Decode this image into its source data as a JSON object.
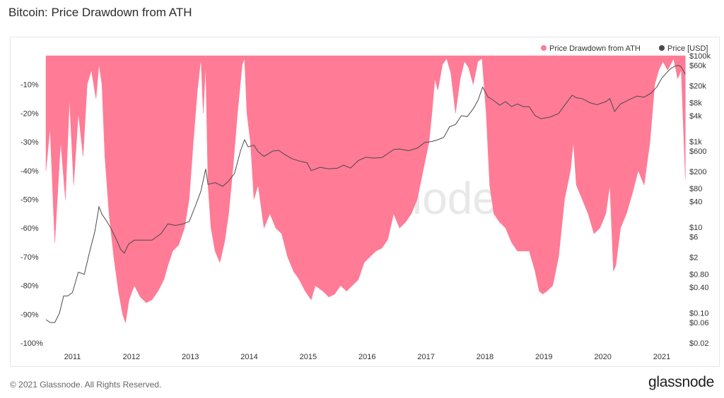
{
  "header": {
    "title": "Bitcoin: Price Drawdown from ATH"
  },
  "footer": {
    "copyright": "© 2021 Glassnode. All Rights Reserved.",
    "brand": "glassnode"
  },
  "watermark": "glassnode",
  "colors": {
    "drawdown": "#ff7b96",
    "price": "#4a4a4a"
  },
  "chart_data": {
    "type": "area",
    "title": "Bitcoin: Price Drawdown from ATH",
    "legend": {
      "position": "top-right",
      "entries": [
        "Price Drawdown from ATH",
        "Price [USD]"
      ]
    },
    "x_ticks": [
      "2011",
      "2012",
      "2013",
      "2014",
      "2015",
      "2016",
      "2017",
      "2018",
      "2019",
      "2020",
      "2021"
    ],
    "y_left": {
      "label": "",
      "ticks": [
        "-10%",
        "-20%",
        "-30%",
        "-40%",
        "-50%",
        "-60%",
        "-70%",
        "-80%",
        "-90%",
        "-100%"
      ],
      "range": [
        -100,
        0
      ]
    },
    "y_right": {
      "label": "",
      "scale": "log",
      "ticks": [
        "$100k",
        "$60k",
        "$20k",
        "$8k",
        "$4k",
        "$1k",
        "$600",
        "$200",
        "$80",
        "$40",
        "$10",
        "$6",
        "$2",
        "$0.80",
        "$0.40",
        "$0.10",
        "$0.06",
        "$0.02"
      ],
      "range": [
        0.02,
        100000
      ]
    },
    "grid": false,
    "series": [
      {
        "name": "Price Drawdown from ATH",
        "unit": "%",
        "points": [
          [
            2010.55,
            -40
          ],
          [
            2010.62,
            -25
          ],
          [
            2010.7,
            -65
          ],
          [
            2010.8,
            -30
          ],
          [
            2010.88,
            -50
          ],
          [
            2010.95,
            -15
          ],
          [
            2011.02,
            -45
          ],
          [
            2011.1,
            -20
          ],
          [
            2011.18,
            -35
          ],
          [
            2011.25,
            -10
          ],
          [
            2011.32,
            -5
          ],
          [
            2011.4,
            -15
          ],
          [
            2011.45,
            -3
          ],
          [
            2011.5,
            -10
          ],
          [
            2011.55,
            -35
          ],
          [
            2011.62,
            -55
          ],
          [
            2011.7,
            -70
          ],
          [
            2011.78,
            -82
          ],
          [
            2011.85,
            -90
          ],
          [
            2011.9,
            -93
          ],
          [
            2011.96,
            -85
          ],
          [
            2012.05,
            -80
          ],
          [
            2012.15,
            -84
          ],
          [
            2012.25,
            -86
          ],
          [
            2012.35,
            -85
          ],
          [
            2012.45,
            -82
          ],
          [
            2012.55,
            -78
          ],
          [
            2012.62,
            -73
          ],
          [
            2012.7,
            -68
          ],
          [
            2012.8,
            -66
          ],
          [
            2012.9,
            -60
          ],
          [
            2012.98,
            -50
          ],
          [
            2013.05,
            -30
          ],
          [
            2013.12,
            -12
          ],
          [
            2013.18,
            -1
          ],
          [
            2013.22,
            -20
          ],
          [
            2013.26,
            -3
          ],
          [
            2013.3,
            -45
          ],
          [
            2013.35,
            -60
          ],
          [
            2013.42,
            -68
          ],
          [
            2013.5,
            -72
          ],
          [
            2013.58,
            -65
          ],
          [
            2013.65,
            -55
          ],
          [
            2013.72,
            -40
          ],
          [
            2013.8,
            -20
          ],
          [
            2013.88,
            -3
          ],
          [
            2013.92,
            -1
          ],
          [
            2013.96,
            -20
          ],
          [
            2014.02,
            -30
          ],
          [
            2014.08,
            -50
          ],
          [
            2014.15,
            -45
          ],
          [
            2014.25,
            -60
          ],
          [
            2014.35,
            -55
          ],
          [
            2014.45,
            -60
          ],
          [
            2014.55,
            -62
          ],
          [
            2014.65,
            -70
          ],
          [
            2014.75,
            -75
          ],
          [
            2014.85,
            -78
          ],
          [
            2014.95,
            -82
          ],
          [
            2015.05,
            -85
          ],
          [
            2015.12,
            -80
          ],
          [
            2015.25,
            -82
          ],
          [
            2015.35,
            -84
          ],
          [
            2015.45,
            -83
          ],
          [
            2015.55,
            -80
          ],
          [
            2015.65,
            -82
          ],
          [
            2015.75,
            -80
          ],
          [
            2015.85,
            -78
          ],
          [
            2015.95,
            -72
          ],
          [
            2016.05,
            -70
          ],
          [
            2016.15,
            -68
          ],
          [
            2016.25,
            -67
          ],
          [
            2016.35,
            -64
          ],
          [
            2016.45,
            -55
          ],
          [
            2016.55,
            -60
          ],
          [
            2016.65,
            -58
          ],
          [
            2016.75,
            -55
          ],
          [
            2016.85,
            -50
          ],
          [
            2016.95,
            -40
          ],
          [
            2017.05,
            -30
          ],
          [
            2017.1,
            -20
          ],
          [
            2017.15,
            -8
          ],
          [
            2017.2,
            -12
          ],
          [
            2017.28,
            -3
          ],
          [
            2017.35,
            -1
          ],
          [
            2017.42,
            -6
          ],
          [
            2017.5,
            -20
          ],
          [
            2017.58,
            -8
          ],
          [
            2017.65,
            -2
          ],
          [
            2017.72,
            -4
          ],
          [
            2017.8,
            -10
          ],
          [
            2017.88,
            -2
          ],
          [
            2017.95,
            -1
          ],
          [
            2018.02,
            -20
          ],
          [
            2018.08,
            -45
          ],
          [
            2018.15,
            -55
          ],
          [
            2018.25,
            -58
          ],
          [
            2018.35,
            -60
          ],
          [
            2018.45,
            -65
          ],
          [
            2018.55,
            -68
          ],
          [
            2018.65,
            -68
          ],
          [
            2018.75,
            -68
          ],
          [
            2018.85,
            -75
          ],
          [
            2018.92,
            -82
          ],
          [
            2018.98,
            -83
          ],
          [
            2019.05,
            -82
          ],
          [
            2019.15,
            -80
          ],
          [
            2019.25,
            -70
          ],
          [
            2019.35,
            -50
          ],
          [
            2019.45,
            -40
          ],
          [
            2019.5,
            -30
          ],
          [
            2019.55,
            -45
          ],
          [
            2019.65,
            -50
          ],
          [
            2019.75,
            -55
          ],
          [
            2019.85,
            -62
          ],
          [
            2019.95,
            -60
          ],
          [
            2020.05,
            -55
          ],
          [
            2020.12,
            -45
          ],
          [
            2020.18,
            -75
          ],
          [
            2020.22,
            -73
          ],
          [
            2020.3,
            -60
          ],
          [
            2020.4,
            -55
          ],
          [
            2020.5,
            -48
          ],
          [
            2020.6,
            -40
          ],
          [
            2020.7,
            -45
          ],
          [
            2020.8,
            -30
          ],
          [
            2020.88,
            -10
          ],
          [
            2020.95,
            -5
          ],
          [
            2021.02,
            -2
          ],
          [
            2021.1,
            -5
          ],
          [
            2021.15,
            -3
          ],
          [
            2021.2,
            -1
          ],
          [
            2021.27,
            -8
          ],
          [
            2021.33,
            -5
          ],
          [
            2021.4,
            -43
          ]
        ]
      },
      {
        "name": "Price [USD]",
        "unit": "USD",
        "points": [
          [
            2010.55,
            0.07
          ],
          [
            2010.62,
            0.06
          ],
          [
            2010.7,
            0.06
          ],
          [
            2010.78,
            0.1
          ],
          [
            2010.85,
            0.25
          ],
          [
            2010.92,
            0.25
          ],
          [
            2011.0,
            0.3
          ],
          [
            2011.1,
            0.9
          ],
          [
            2011.2,
            0.8
          ],
          [
            2011.3,
            3
          ],
          [
            2011.38,
            8
          ],
          [
            2011.45,
            30
          ],
          [
            2011.5,
            20
          ],
          [
            2011.58,
            14
          ],
          [
            2011.66,
            9
          ],
          [
            2011.75,
            5
          ],
          [
            2011.82,
            3
          ],
          [
            2011.88,
            2.5
          ],
          [
            2011.95,
            4
          ],
          [
            2012.05,
            5
          ],
          [
            2012.2,
            5
          ],
          [
            2012.35,
            5
          ],
          [
            2012.5,
            7
          ],
          [
            2012.62,
            12
          ],
          [
            2012.75,
            11
          ],
          [
            2012.88,
            12
          ],
          [
            2012.98,
            13.5
          ],
          [
            2013.08,
            30
          ],
          [
            2013.18,
            70
          ],
          [
            2013.26,
            230
          ],
          [
            2013.3,
            100
          ],
          [
            2013.42,
            110
          ],
          [
            2013.55,
            90
          ],
          [
            2013.65,
            120
          ],
          [
            2013.75,
            180
          ],
          [
            2013.85,
            600
          ],
          [
            2013.92,
            1100
          ],
          [
            2013.98,
            750
          ],
          [
            2014.08,
            820
          ],
          [
            2014.15,
            580
          ],
          [
            2014.25,
            450
          ],
          [
            2014.4,
            600
          ],
          [
            2014.5,
            620
          ],
          [
            2014.6,
            500
          ],
          [
            2014.72,
            400
          ],
          [
            2014.85,
            350
          ],
          [
            2014.98,
            320
          ],
          [
            2015.05,
            210
          ],
          [
            2015.2,
            250
          ],
          [
            2015.35,
            230
          ],
          [
            2015.5,
            240
          ],
          [
            2015.6,
            280
          ],
          [
            2015.72,
            240
          ],
          [
            2015.85,
            360
          ],
          [
            2015.98,
            430
          ],
          [
            2016.1,
            410
          ],
          [
            2016.25,
            420
          ],
          [
            2016.45,
            650
          ],
          [
            2016.55,
            670
          ],
          [
            2016.7,
            610
          ],
          [
            2016.85,
            700
          ],
          [
            2016.98,
            950
          ],
          [
            2017.1,
            1000
          ],
          [
            2017.2,
            1100
          ],
          [
            2017.3,
            1250
          ],
          [
            2017.4,
            2200
          ],
          [
            2017.5,
            2500
          ],
          [
            2017.6,
            4000
          ],
          [
            2017.7,
            3800
          ],
          [
            2017.8,
            5800
          ],
          [
            2017.88,
            9000
          ],
          [
            2017.96,
            18500
          ],
          [
            2018.05,
            11000
          ],
          [
            2018.15,
            9000
          ],
          [
            2018.25,
            7000
          ],
          [
            2018.35,
            8500
          ],
          [
            2018.45,
            6500
          ],
          [
            2018.55,
            7500
          ],
          [
            2018.65,
            6500
          ],
          [
            2018.75,
            6500
          ],
          [
            2018.85,
            4000
          ],
          [
            2018.95,
            3400
          ],
          [
            2019.1,
            3700
          ],
          [
            2019.25,
            4500
          ],
          [
            2019.35,
            7000
          ],
          [
            2019.48,
            12000
          ],
          [
            2019.55,
            10500
          ],
          [
            2019.65,
            10000
          ],
          [
            2019.78,
            8000
          ],
          [
            2019.9,
            7200
          ],
          [
            2020.05,
            8500
          ],
          [
            2020.12,
            10000
          ],
          [
            2020.2,
            5000
          ],
          [
            2020.3,
            7500
          ],
          [
            2020.45,
            9500
          ],
          [
            2020.58,
            11500
          ],
          [
            2020.7,
            10800
          ],
          [
            2020.82,
            13500
          ],
          [
            2020.92,
            19000
          ],
          [
            2021.0,
            30000
          ],
          [
            2021.08,
            40000
          ],
          [
            2021.15,
            50000
          ],
          [
            2021.22,
            57000
          ],
          [
            2021.28,
            60000
          ],
          [
            2021.33,
            55000
          ],
          [
            2021.4,
            37000
          ]
        ]
      }
    ]
  }
}
